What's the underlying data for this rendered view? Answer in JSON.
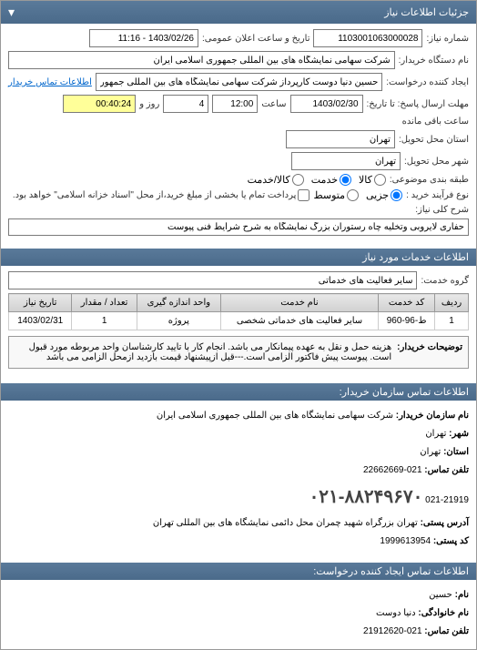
{
  "titlebar": {
    "title": "جزئیات اطلاعات نیاز"
  },
  "form": {
    "request_number_label": "شماره نیاز:",
    "request_number": "1103001063000028",
    "public_datetime_label": "تاریخ و ساعت اعلان عمومی:",
    "public_datetime": "1403/02/26 - 11:16",
    "buyer_org_label": "نام دستگاه خریدار:",
    "buyer_org": "شرکت سهامی نمایشگاه های بین المللی جمهوری اسلامی ایران",
    "request_creator_label": "ایجاد کننده درخواست:",
    "request_creator": "حسین دنیا دوست کارپرداز شرکت سهامی نمایشگاه های بین المللی جمهوری",
    "contact_link": "اطلاعات تماس خریدار",
    "response_deadline_label": "مهلت ارسال پاسخ: تا تاریخ:",
    "response_date": "1403/02/30",
    "time_label": "ساعت",
    "response_time": "12:00",
    "days_label": "روز و",
    "days_remaining": "4",
    "time_remaining": "00:40:24",
    "remaining_label": "ساعت باقی مانده",
    "delivery_province_label": "استان محل تحویل:",
    "delivery_province": "تهران",
    "delivery_city_label": "شهر محل تحویل:",
    "delivery_city": "تهران",
    "category_label": "طبقه بندی موضوعی:",
    "radio_goods": "کالا",
    "radio_service": "خدمت",
    "radio_goods_service": "کالا/خدمت",
    "purchase_type_label": "نوع فرآیند خرید :",
    "radio_small": "جزیی",
    "radio_medium": "متوسط",
    "payment_note": "پرداخت تمام یا بخشی از مبلغ خرید،از محل \"اسناد خزانه اسلامی\" خواهد بود.",
    "need_desc_label": "شرح کلی نیاز:",
    "need_desc": "حفاری لایروبی وتخلیه چاه رستوران بزرگ نمایشگاه به شرح شرایط فنی پیوست"
  },
  "services_section": {
    "header": "اطلاعات خدمات مورد نیاز",
    "service_group_label": "گروه خدمت:",
    "service_group": "سایر فعالیت های خدماتی"
  },
  "table": {
    "headers": {
      "row": "ردیف",
      "service_code": "کد خدمت",
      "service_name": "نام خدمت",
      "unit": "واحد اندازه گیری",
      "quantity": "تعداد / مقدار",
      "need_date": "تاریخ نیاز"
    },
    "rows": [
      {
        "row": "1",
        "service_code": "ط-96-960",
        "service_name": "سایر فعالیت های خدماتی شخصی",
        "unit": "پروژه",
        "quantity": "1",
        "need_date": "1403/02/31"
      }
    ]
  },
  "notes": {
    "label": "توضیحات خریدار:",
    "text": "هزینه حمل و نقل به عهده پیمانکار می باشد. انجام کار با تایید کارشناسان واحد مربوطه مورد قبول است. پیوست پیش فاکتور الزامی است.---قبل ازپیشنهاد قیمت بازدید ازمحل الزامی می باشد"
  },
  "contact_org": {
    "header": "اطلاعات تماس سازمان خریدار:",
    "org_label": "نام سازمان خریدار:",
    "org_name": "شرکت سهامی نمایشگاه های بین المللی جمهوری اسلامی ایران",
    "city_label": "شهر:",
    "city": "تهران",
    "province_label": "استان:",
    "province": "تهران",
    "phone_label": "تلفن تماس:",
    "phone": "021-22662669",
    "phone2": "021-21919",
    "big_phone": "۰۲۱-۸۸۲۴۹۶۷۰",
    "address_label": "آدرس پستی:",
    "address": "تهران بزرگراه شهید چمران محل دائمی نمایشگاه های بین المللی تهران",
    "postal_code_label": "کد پستی:",
    "postal_code": "1999613954"
  },
  "contact_creator": {
    "header": "اطلاعات تماس ایجاد کننده درخواست:",
    "name_label": "نام:",
    "name": "حسین",
    "surname_label": "نام خانوادگی:",
    "surname": "دنیا دوست",
    "phone_label": "تلفن تماس:",
    "phone": "021-21912620"
  }
}
